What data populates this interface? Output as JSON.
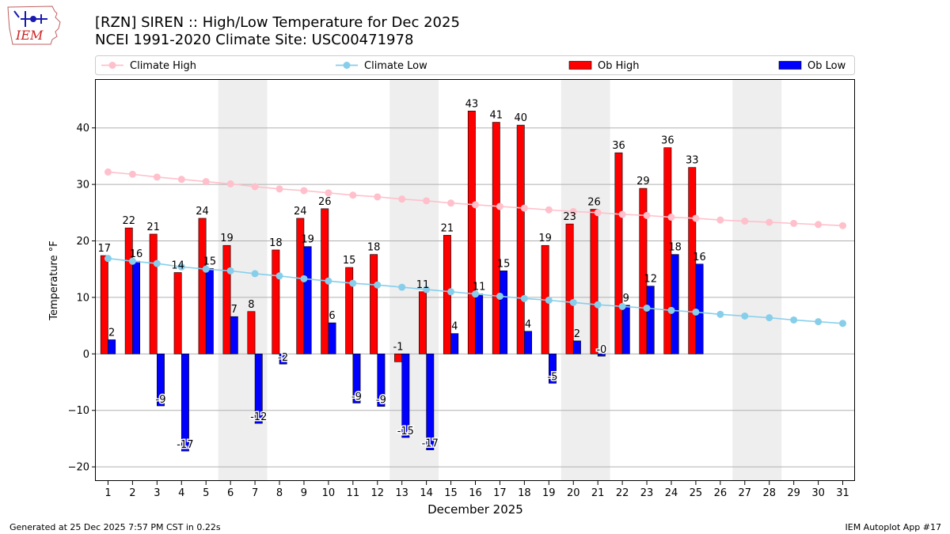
{
  "header": {
    "title_line1": "[RZN] SIREN :: High/Low Temperature for Dec 2025",
    "title_line2": "NCEI 1991-2020 Climate Site: USC00471978",
    "logo_text": "IEM"
  },
  "footer": {
    "generated": "Generated at 25 Dec 2025 7:57 PM CST in 0.22s",
    "app": "IEM Autoplot App #17"
  },
  "colors": {
    "ob_high": "#ff0000",
    "ob_low": "#0000ff",
    "climate_high": "#ffc0cb",
    "climate_low": "#87ceeb",
    "weekend_band": "#eeeeee",
    "grid": "#b0b0b0"
  },
  "chart_data": {
    "type": "bar",
    "xlabel": "December 2025",
    "ylabel": "Temperature °F",
    "xlim": [
      0.5,
      31.5
    ],
    "ylim": [
      -22.5,
      48.5
    ],
    "yticks": [
      -20,
      -10,
      0,
      10,
      20,
      30,
      40
    ],
    "grid": true,
    "legend_position": "top",
    "legend": [
      "Climate High",
      "Climate Low",
      "Ob High",
      "Ob Low"
    ],
    "days": [
      1,
      2,
      3,
      4,
      5,
      6,
      7,
      8,
      9,
      10,
      11,
      12,
      13,
      14,
      15,
      16,
      17,
      18,
      19,
      20,
      21,
      22,
      23,
      24,
      25,
      26,
      27,
      28,
      29,
      30,
      31
    ],
    "shaded_weekends": [
      [
        6,
        7
      ],
      [
        13,
        14
      ],
      [
        20,
        21
      ],
      [
        27,
        28
      ]
    ],
    "ob_high": [
      17.4,
      22.3,
      21.2,
      14.4,
      24.0,
      19.2,
      7.5,
      18.4,
      24.0,
      25.7,
      15.3,
      17.6,
      -1.4,
      11.0,
      21.0,
      43.0,
      41.0,
      40.5,
      19.2,
      23.0,
      25.6,
      35.6,
      29.3,
      36.5,
      33.0
    ],
    "ob_high_labels": [
      "17",
      "22",
      "21",
      "14",
      "24",
      "19",
      "8",
      "18",
      "24",
      "26",
      "15",
      "18",
      "-1",
      "11",
      "21",
      "43",
      "41",
      "40",
      "19",
      "23",
      "26",
      "36",
      "29",
      "36",
      "33"
    ],
    "ob_low": [
      2.5,
      16.4,
      -9.2,
      -17.2,
      15.1,
      6.6,
      -12.3,
      -1.8,
      19.0,
      5.5,
      -8.7,
      -9.3,
      -14.8,
      -17.0,
      3.6,
      10.6,
      14.7,
      4.0,
      -5.2,
      2.3,
      -0.4,
      8.6,
      12.0,
      17.6,
      15.9
    ],
    "ob_low_labels": [
      "2",
      "16",
      "-9",
      "-17",
      "15",
      "7",
      "-12",
      "-2",
      "19",
      "6",
      "-9",
      "-9",
      "-15",
      "-17",
      "4",
      "11",
      "15",
      "4",
      "-5",
      "2",
      "-0",
      "9",
      "12",
      "18",
      "16"
    ],
    "climate_high": [
      32.2,
      31.8,
      31.3,
      30.9,
      30.5,
      30.1,
      29.6,
      29.2,
      28.9,
      28.5,
      28.1,
      27.8,
      27.4,
      27.1,
      26.7,
      26.4,
      26.1,
      25.8,
      25.5,
      25.2,
      25.0,
      24.7,
      24.5,
      24.2,
      24.0,
      23.7,
      23.5,
      23.3,
      23.1,
      22.9,
      22.7
    ],
    "climate_low": [
      16.9,
      16.4,
      16.0,
      15.4,
      15.0,
      14.7,
      14.2,
      13.8,
      13.3,
      12.9,
      12.5,
      12.2,
      11.8,
      11.4,
      11.0,
      10.6,
      10.2,
      9.8,
      9.5,
      9.1,
      8.7,
      8.4,
      8.1,
      7.7,
      7.4,
      7.0,
      6.7,
      6.4,
      6.0,
      5.7,
      5.4
    ]
  }
}
